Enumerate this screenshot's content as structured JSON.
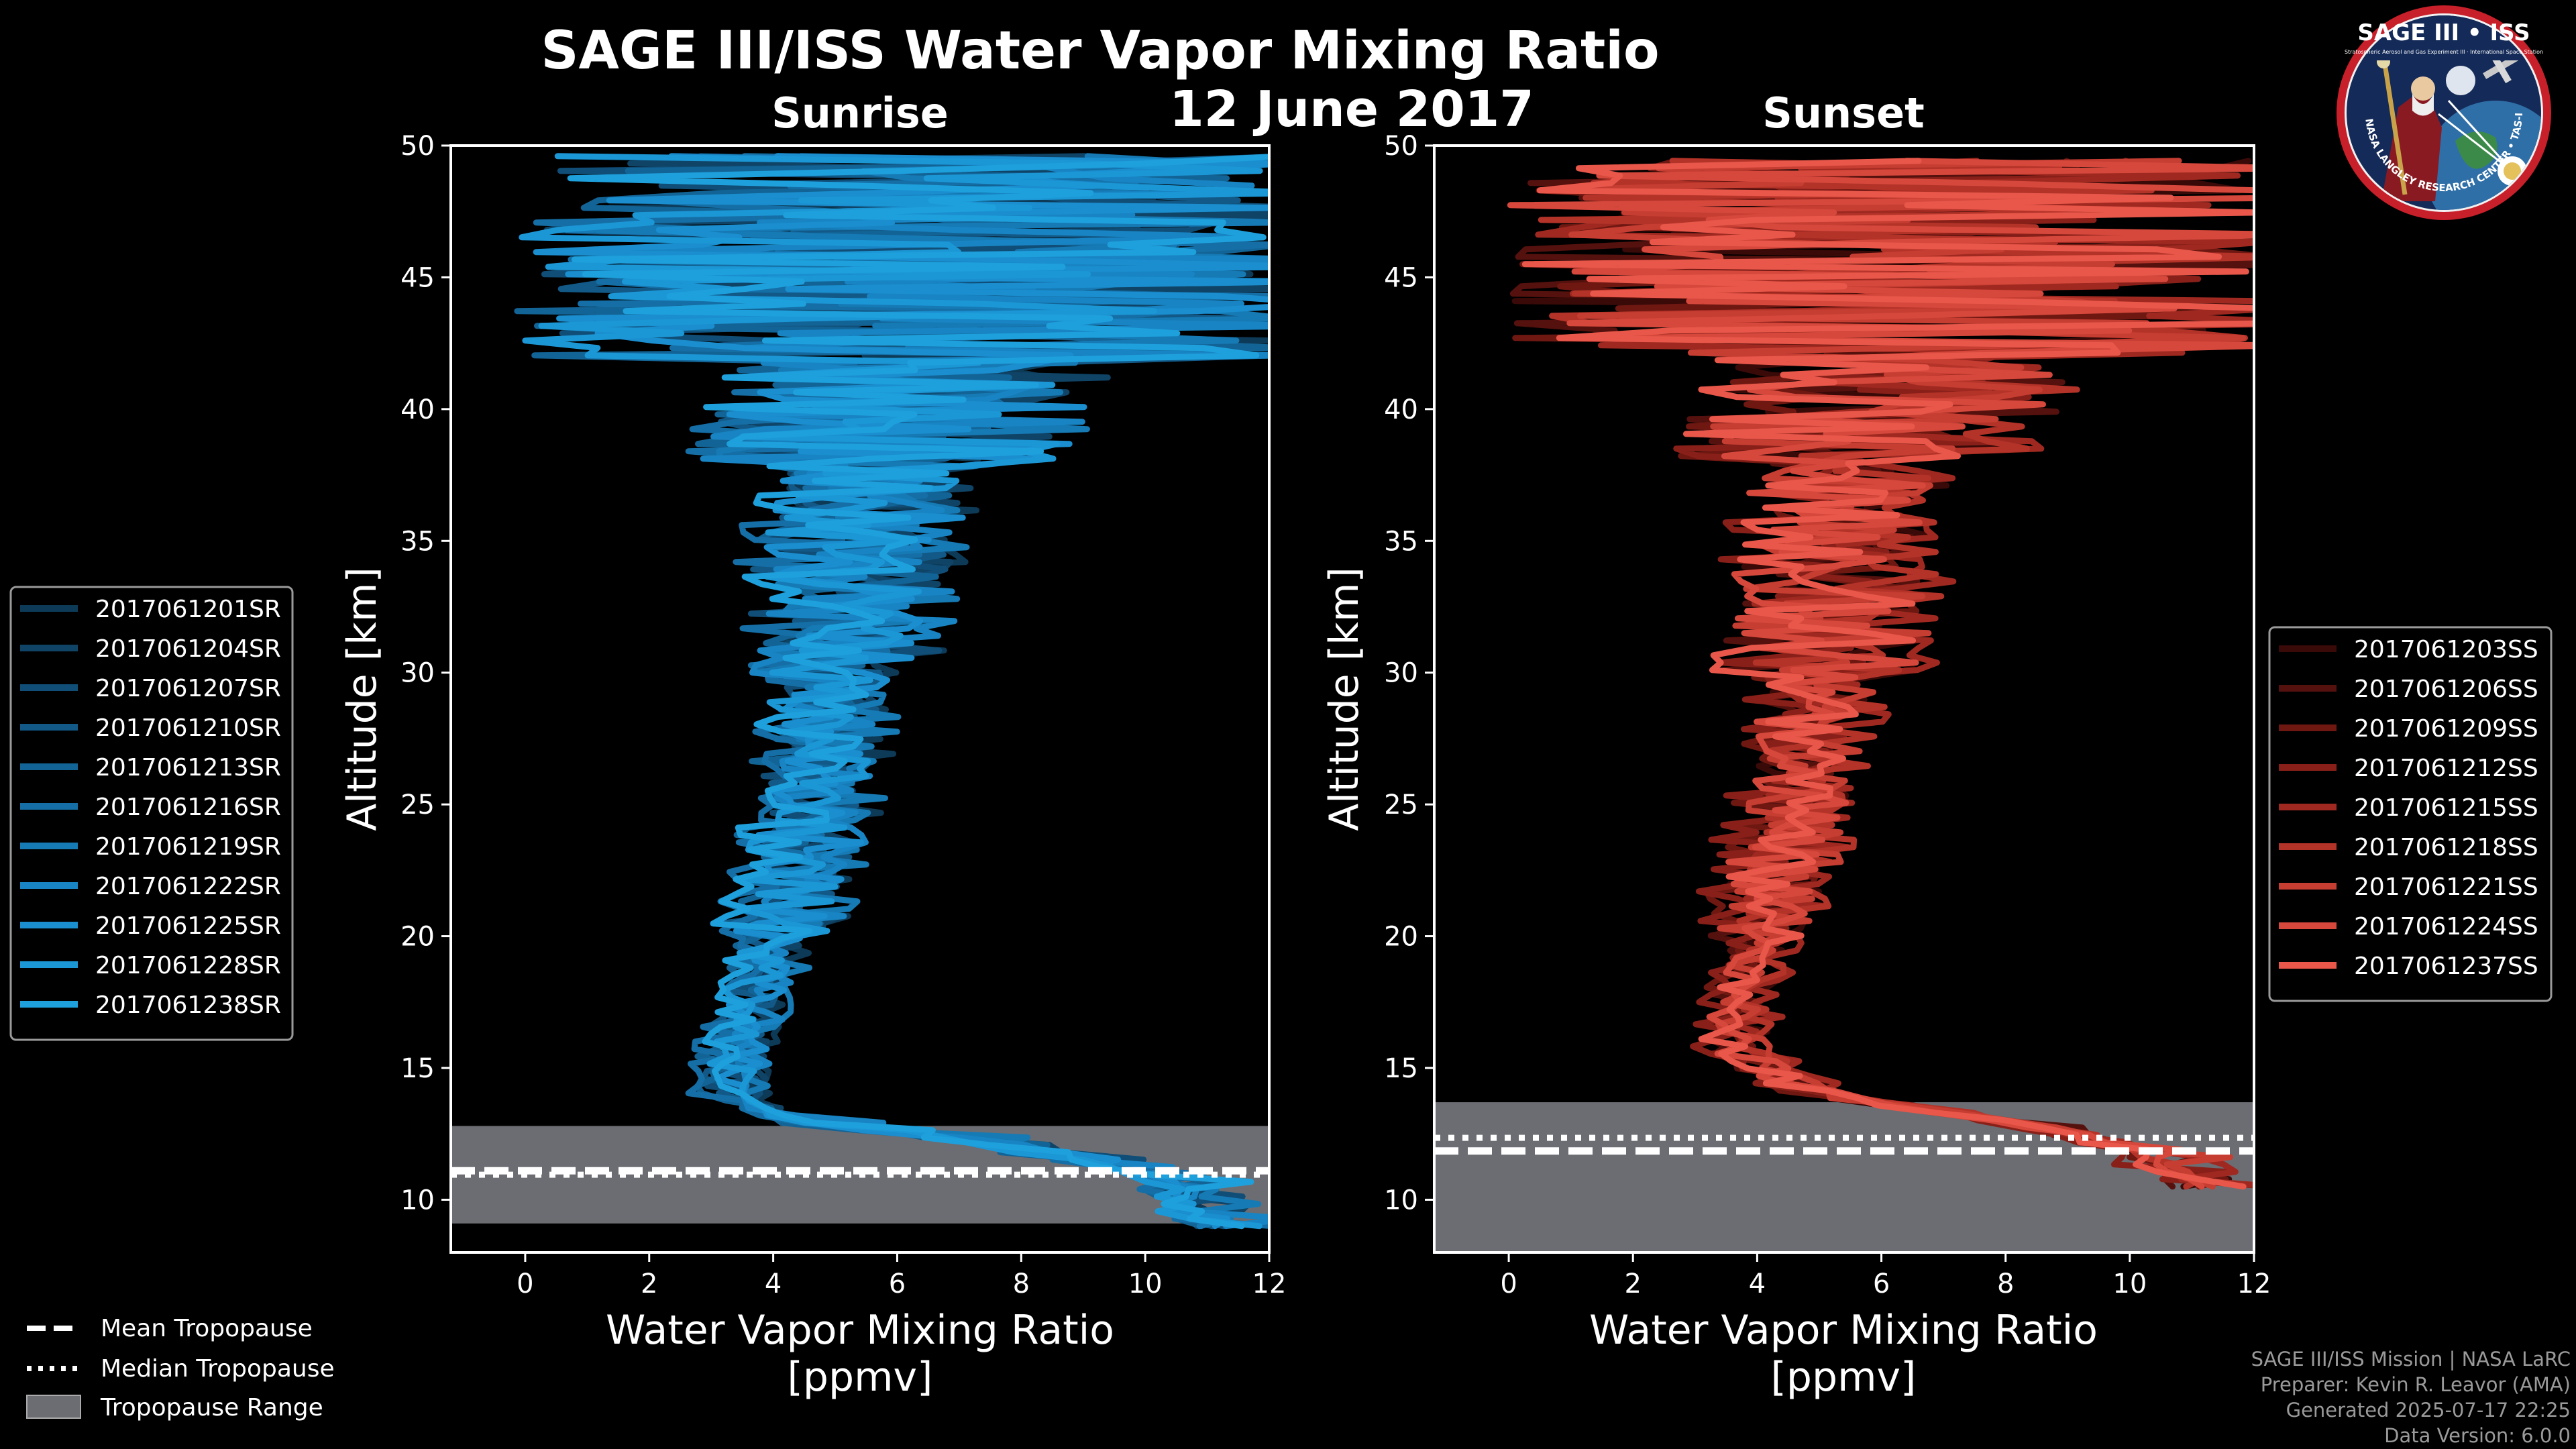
{
  "header": {
    "title": "SAGE III/ISS Water Vapor Mixing Ratio",
    "date": "12 June 2017"
  },
  "logo": {
    "name": "SAGE III • ISS",
    "subtitle": "Stratospheric Aerosol and Gas Experiment III · International Space Station",
    "ring_text": "BALL • NASA LANGLEY RESEARCH CENTER • TAS-I • ESA"
  },
  "colors": {
    "background": "#000000",
    "sunrise": "#1ea0dc",
    "sunset": "#e8574a",
    "tropopause_band": "#6b6d72"
  },
  "chart_data": [
    {
      "type": "line",
      "title": "Sunrise",
      "xlabel": "Water Vapor Mixing Ratio\n[ppmv]",
      "xlabel_lines": [
        "Water Vapor Mixing Ratio",
        "[ppmv]"
      ],
      "ylabel": "Altitude [km]",
      "xlim": [
        -1.2,
        12
      ],
      "ylim": [
        8,
        50
      ],
      "xticks": [
        0,
        2,
        4,
        6,
        8,
        10,
        12
      ],
      "xtick_labels": [
        "0",
        "2",
        "4",
        "6",
        "8",
        "10",
        "12"
      ],
      "yticks": [
        10,
        15,
        20,
        25,
        30,
        35,
        40,
        45,
        50
      ],
      "ytick_labels": [
        "10",
        "15",
        "20",
        "25",
        "30",
        "35",
        "40",
        "45",
        "50"
      ],
      "tropopause": {
        "mean": 11.1,
        "median": 10.95,
        "range": [
          9.1,
          12.8
        ]
      },
      "legend_position": "left",
      "series": [
        {
          "name": "2017061201SR",
          "color": "#0d3a57",
          "seed": 11
        },
        {
          "name": "2017061204SR",
          "color": "#0f4467",
          "seed": 12
        },
        {
          "name": "2017061207SR",
          "color": "#104e77",
          "seed": 13
        },
        {
          "name": "2017061210SR",
          "color": "#125987",
          "seed": 14
        },
        {
          "name": "2017061213SR",
          "color": "#136496",
          "seed": 15
        },
        {
          "name": "2017061216SR",
          "color": "#156fa6",
          "seed": 16
        },
        {
          "name": "2017061219SR",
          "color": "#167ab5",
          "seed": 17
        },
        {
          "name": "2017061222SR",
          "color": "#1884c3",
          "seed": 18
        },
        {
          "name": "2017061225SR",
          "color": "#1a8ecf",
          "seed": 19
        },
        {
          "name": "2017061228SR",
          "color": "#1c97d6",
          "seed": 20
        },
        {
          "name": "2017061238SR",
          "color": "#1ea0dc",
          "seed": 21
        }
      ],
      "profile_shape": {
        "altitudes_km": [
          9,
          11,
          12,
          13,
          14,
          16,
          18,
          20,
          22,
          25,
          28,
          30,
          33,
          36,
          38,
          40,
          42,
          44,
          46,
          48,
          49.6
        ],
        "mean_ppmv": [
          11.0,
          10.0,
          8.0,
          4.2,
          3.3,
          3.4,
          3.7,
          4.0,
          4.3,
          4.6,
          4.8,
          5.0,
          5.2,
          5.4,
          5.6,
          6.0,
          6.5,
          6.5,
          6.5,
          6.5,
          6.5
        ]
      }
    },
    {
      "type": "line",
      "title": "Sunset",
      "xlabel": "Water Vapor Mixing Ratio\n[ppmv]",
      "xlabel_lines": [
        "Water Vapor Mixing Ratio",
        "[ppmv]"
      ],
      "ylabel": "Altitude [km]",
      "xlim": [
        -1.2,
        12
      ],
      "ylim": [
        8,
        50
      ],
      "xticks": [
        0,
        2,
        4,
        6,
        8,
        10,
        12
      ],
      "xtick_labels": [
        "0",
        "2",
        "4",
        "6",
        "8",
        "10",
        "12"
      ],
      "yticks": [
        10,
        15,
        20,
        25,
        30,
        35,
        40,
        45,
        50
      ],
      "ytick_labels": [
        "10",
        "15",
        "20",
        "25",
        "30",
        "35",
        "40",
        "45",
        "50"
      ],
      "tropopause": {
        "mean": 11.85,
        "median": 12.35,
        "range": [
          8,
          13.7
        ]
      },
      "legend_position": "right",
      "series": [
        {
          "name": "2017061203SS",
          "color": "#3a0a08",
          "seed": 31
        },
        {
          "name": "2017061206SS",
          "color": "#55110d",
          "seed": 32
        },
        {
          "name": "2017061209SS",
          "color": "#6f1812",
          "seed": 33
        },
        {
          "name": "2017061212SS",
          "color": "#882019",
          "seed": 34
        },
        {
          "name": "2017061215SS",
          "color": "#9f2920",
          "seed": 35
        },
        {
          "name": "2017061218SS",
          "color": "#b43329",
          "seed": 36
        },
        {
          "name": "2017061221SS",
          "color": "#c63d32",
          "seed": 37
        },
        {
          "name": "2017061224SS",
          "color": "#d6483c",
          "seed": 38
        },
        {
          "name": "2017061237SS",
          "color": "#e8574a",
          "seed": 39
        }
      ],
      "profile_shape": {
        "altitudes_km": [
          10.5,
          12,
          13,
          14,
          15.5,
          17,
          19,
          21,
          24,
          27,
          30,
          33,
          36,
          38,
          40,
          42,
          44,
          46,
          48,
          49.6
        ],
        "mean_ppmv": [
          11.0,
          10.0,
          8.0,
          5.0,
          3.7,
          3.6,
          3.9,
          4.1,
          4.5,
          4.8,
          5.0,
          5.2,
          5.4,
          5.6,
          6.0,
          6.5,
          6.5,
          6.5,
          6.5,
          6.5
        ]
      }
    }
  ],
  "tropopause_legend": {
    "mean_label": "Mean Tropopause",
    "median_label": "Median Tropopause",
    "range_label": "Tropopause Range"
  },
  "credits": {
    "line1": "SAGE III/ISS Mission | NASA LaRC",
    "line2": "Preparer: Kevin R. Leavor (AMA)",
    "line3": "Generated 2025-07-17 22:25",
    "line4": "Data Version: 6.0.0"
  }
}
